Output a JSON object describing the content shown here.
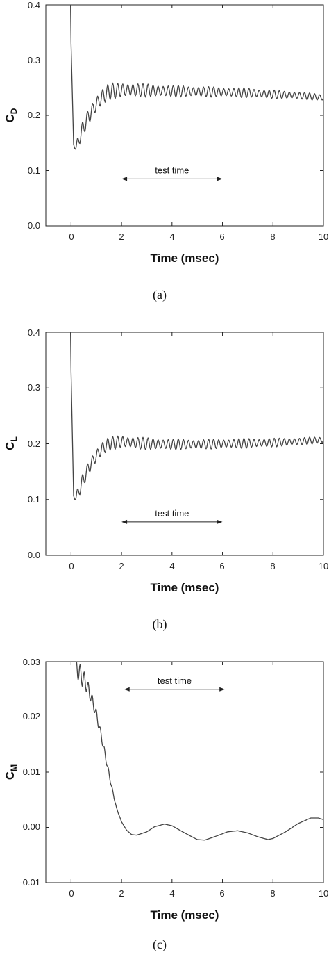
{
  "chart_data": [
    {
      "type": "line",
      "panel": "(a)",
      "ylabel_main": "C",
      "ylabel_sub": "D",
      "xlabel": "Time (msec)",
      "xlim": [
        -1,
        10
      ],
      "ylim": [
        0.0,
        0.4
      ],
      "xticks": [
        "0",
        "2",
        "4",
        "6",
        "8",
        "10"
      ],
      "yticks": [
        "0.0",
        "0.1",
        "0.2",
        "0.3",
        "0.4"
      ],
      "annotation": {
        "text": "test time",
        "x_start": 2.0,
        "x_end": 6.0,
        "y": 0.085
      },
      "series": [
        {
          "shape": "oscillating",
          "x": [
            -0.02,
            0.0,
            0.1,
            0.2,
            0.4,
            0.6,
            0.8,
            1.0,
            1.2,
            1.5,
            2.0,
            2.5,
            3.0,
            4.0,
            5.0,
            6.0,
            7.0,
            8.0,
            9.0,
            10.0
          ],
          "y": [
            0.4,
            0.33,
            0.148,
            0.142,
            0.168,
            0.19,
            0.206,
            0.22,
            0.232,
            0.243,
            0.246,
            0.246,
            0.245,
            0.244,
            0.243,
            0.242,
            0.241,
            0.238,
            0.236,
            0.232
          ],
          "osc_amp": [
            0,
            0,
            0.004,
            0.008,
            0.014,
            0.016,
            0.017,
            0.017,
            0.016,
            0.015,
            0.014,
            0.013,
            0.012,
            0.011,
            0.01,
            0.009,
            0.009,
            0.008,
            0.007,
            0.006
          ],
          "osc_period": 0.2
        }
      ]
    },
    {
      "type": "line",
      "panel": "(b)",
      "ylabel_main": "C",
      "ylabel_sub": "L",
      "xlabel": "Time (msec)",
      "xlim": [
        -1,
        10
      ],
      "ylim": [
        0.0,
        0.4
      ],
      "xticks": [
        "0",
        "2",
        "4",
        "6",
        "8",
        "10"
      ],
      "yticks": [
        "0.0",
        "0.1",
        "0.2",
        "0.3",
        "0.4"
      ],
      "annotation": {
        "text": "test time",
        "x_start": 2.0,
        "x_end": 6.0,
        "y": 0.06
      },
      "series": [
        {
          "shape": "oscillating",
          "x": [
            -0.02,
            0.0,
            0.1,
            0.2,
            0.4,
            0.6,
            0.8,
            1.0,
            1.2,
            1.5,
            2.0,
            2.5,
            3.0,
            4.0,
            5.0,
            6.0,
            7.0,
            8.0,
            9.0,
            10.0
          ],
          "y": [
            0.4,
            0.33,
            0.107,
            0.104,
            0.126,
            0.148,
            0.165,
            0.178,
            0.19,
            0.2,
            0.204,
            0.202,
            0.2,
            0.199,
            0.199,
            0.2,
            0.201,
            0.202,
            0.204,
            0.207
          ],
          "osc_amp": [
            0,
            0,
            0.004,
            0.008,
            0.013,
            0.014,
            0.014,
            0.014,
            0.013,
            0.012,
            0.012,
            0.011,
            0.011,
            0.01,
            0.009,
            0.009,
            0.009,
            0.008,
            0.007,
            0.006
          ],
          "osc_period": 0.2
        }
      ]
    },
    {
      "type": "line",
      "panel": "(c)",
      "ylabel_main": "C",
      "ylabel_sub": "M",
      "xlabel": "Time (msec)",
      "xlim": [
        -1,
        10
      ],
      "ylim": [
        -0.01,
        0.03
      ],
      "xticks": [
        "0",
        "2",
        "4",
        "6",
        "8",
        "10"
      ],
      "yticks": [
        "-0.01",
        "0.00",
        "0.01",
        "0.02",
        "0.03"
      ],
      "annotation": {
        "text": "test time",
        "x_start": 2.1,
        "x_end": 6.1,
        "y": 0.025
      },
      "series": [
        {
          "shape": "damped",
          "x": [
            0.0,
            0.2,
            0.4,
            0.6,
            0.8,
            1.0,
            1.2,
            1.4,
            1.6,
            1.8,
            2.0,
            2.2,
            2.4,
            2.6,
            3.0,
            3.3,
            3.7,
            4.0,
            4.5,
            5.0,
            5.3,
            5.8,
            6.2,
            6.6,
            7.0,
            7.4,
            7.8,
            8.0,
            8.5,
            9.0,
            9.5,
            9.8,
            10.0
          ],
          "y": [
            0.0305,
            0.029,
            0.0275,
            0.026,
            0.0235,
            0.0205,
            0.0165,
            0.012,
            0.0075,
            0.0035,
            0.001,
            -0.0005,
            -0.0013,
            -0.0014,
            -0.0008,
            0.0001,
            0.0006,
            0.0003,
            -0.001,
            -0.0022,
            -0.0023,
            -0.0015,
            -0.0008,
            -0.0006,
            -0.001,
            -0.0017,
            -0.0022,
            -0.002,
            -0.0008,
            0.0007,
            0.0017,
            0.0017,
            0.0014
          ],
          "osc_amp": [
            0.0018,
            0.0018,
            0.0017,
            0.0016,
            0.0014,
            0.0012,
            0.0009,
            0.0006,
            0.0003,
            0.0001,
            0,
            0,
            0,
            0,
            0,
            0,
            0,
            0,
            0,
            0,
            0,
            0,
            0,
            0,
            0,
            0,
            0,
            0,
            0,
            0,
            0,
            0,
            0
          ],
          "osc_period": 0.16
        }
      ]
    }
  ]
}
